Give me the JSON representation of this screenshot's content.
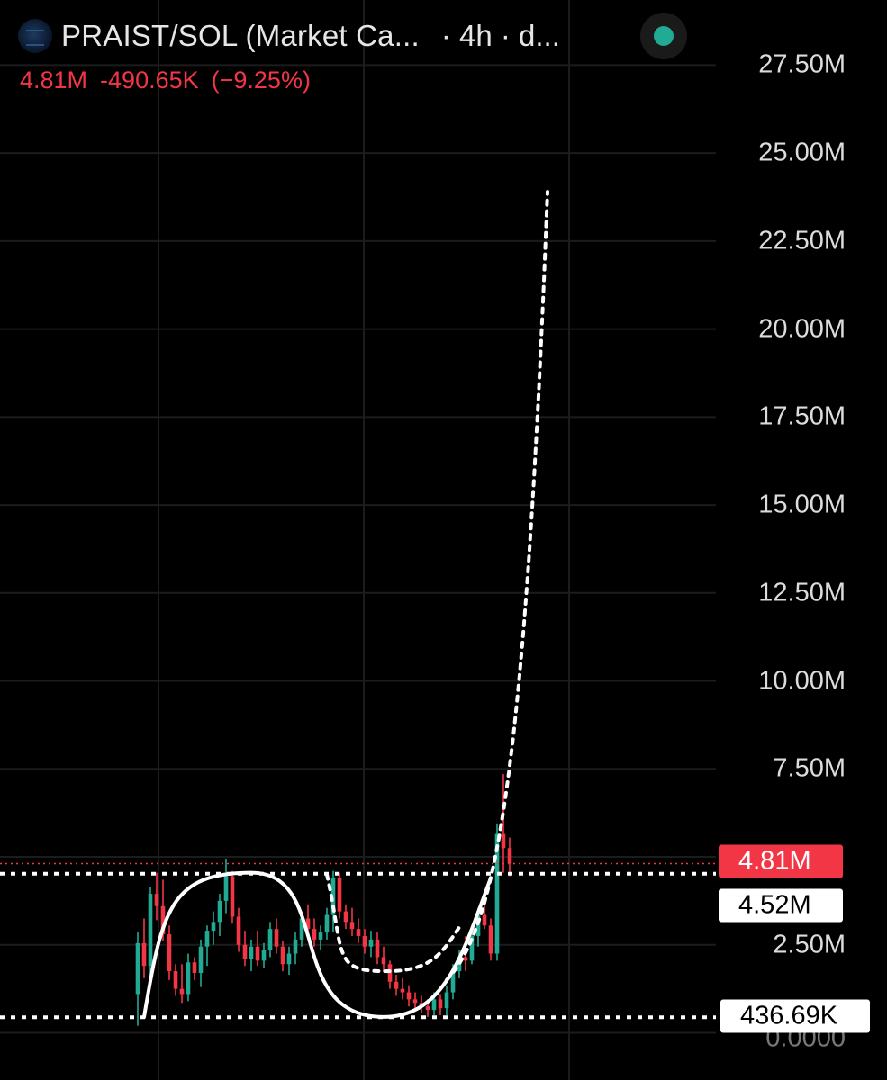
{
  "header": {
    "symbol_icon": "token-logo-icon",
    "title": "PRAIST/SOL (Market Ca...",
    "interval": "· 4h · d...",
    "status_icon": "market-status-dot-icon"
  },
  "quote": {
    "last": "4.81M",
    "change": "-490.65K",
    "change_pct": "(−9.25%)"
  },
  "colors": {
    "background": "#000000",
    "up": "#22ab94",
    "down": "#f23645",
    "grid": "#1c1c1c",
    "annotation": "#ffffff"
  },
  "price_tags": {
    "last_price": "4.81M",
    "level": "4.52M",
    "low": "436.69K"
  },
  "chart_data": {
    "type": "candlestick",
    "y_axis_ticks": [
      {
        "value": 0,
        "label": "0.0000"
      },
      {
        "value": 2.5,
        "label": "2.50M"
      },
      {
        "value": 7.5,
        "label": "7.50M"
      },
      {
        "value": 10,
        "label": "10.00M"
      },
      {
        "value": 12.5,
        "label": "12.50M"
      },
      {
        "value": 15,
        "label": "15.00M"
      },
      {
        "value": 17.5,
        "label": "17.50M"
      },
      {
        "value": 20,
        "label": "20.00M"
      },
      {
        "value": 22.5,
        "label": "22.50M"
      },
      {
        "value": 25,
        "label": "25.00M"
      },
      {
        "value": 27.5,
        "label": "27.50M"
      }
    ],
    "ylim": [
      0,
      28.2
    ],
    "y_unit": "M",
    "grid": true,
    "last_price": 4.81,
    "horizontal_levels": [
      4.52,
      0.44
    ],
    "candles_ohlc": [
      [
        1.1,
        2.85,
        0.2,
        2.55
      ],
      [
        2.55,
        3.25,
        1.55,
        1.9
      ],
      [
        1.9,
        4.15,
        1.5,
        3.95
      ],
      [
        3.95,
        4.55,
        3.2,
        3.6
      ],
      [
        3.6,
        4.35,
        2.6,
        2.8
      ],
      [
        2.8,
        3.05,
        1.5,
        1.75
      ],
      [
        1.75,
        1.95,
        1.05,
        1.25
      ],
      [
        1.25,
        1.95,
        0.85,
        1.1
      ],
      [
        1.1,
        2.25,
        0.9,
        2.0
      ],
      [
        2.0,
        2.15,
        1.5,
        1.7
      ],
      [
        1.7,
        2.65,
        1.3,
        2.45
      ],
      [
        2.45,
        3.05,
        1.9,
        2.9
      ],
      [
        2.9,
        3.45,
        2.5,
        3.15
      ],
      [
        3.15,
        3.95,
        2.75,
        3.75
      ],
      [
        3.75,
        4.95,
        3.4,
        4.45
      ],
      [
        4.45,
        4.6,
        3.1,
        3.3
      ],
      [
        3.3,
        3.55,
        2.3,
        2.5
      ],
      [
        2.5,
        2.9,
        1.9,
        2.1
      ],
      [
        2.1,
        2.65,
        1.75,
        2.45
      ],
      [
        2.45,
        2.9,
        1.9,
        2.05
      ],
      [
        2.05,
        2.55,
        1.85,
        2.35
      ],
      [
        2.35,
        3.15,
        2.15,
        2.95
      ],
      [
        2.95,
        3.25,
        2.25,
        2.45
      ],
      [
        2.45,
        2.6,
        1.75,
        1.95
      ],
      [
        1.95,
        2.45,
        1.65,
        2.25
      ],
      [
        2.25,
        2.85,
        1.95,
        2.65
      ],
      [
        2.65,
        3.45,
        2.45,
        3.25
      ],
      [
        3.25,
        3.65,
        2.75,
        2.95
      ],
      [
        2.95,
        3.25,
        2.45,
        2.65
      ],
      [
        2.65,
        3.05,
        2.35,
        2.85
      ],
      [
        2.85,
        3.55,
        2.65,
        3.35
      ],
      [
        3.35,
        4.6,
        2.85,
        4.4
      ],
      [
        4.4,
        4.55,
        3.25,
        3.45
      ],
      [
        3.45,
        3.65,
        2.95,
        3.15
      ],
      [
        3.15,
        3.55,
        2.75,
        2.95
      ],
      [
        2.95,
        3.25,
        2.55,
        2.75
      ],
      [
        2.75,
        2.95,
        2.25,
        2.45
      ],
      [
        2.45,
        2.9,
        2.15,
        2.65
      ],
      [
        2.65,
        2.85,
        1.95,
        2.15
      ],
      [
        2.15,
        2.45,
        1.75,
        1.95
      ],
      [
        1.95,
        2.05,
        1.25,
        1.45
      ],
      [
        1.45,
        1.65,
        1.05,
        1.25
      ],
      [
        1.25,
        1.55,
        0.95,
        1.15
      ],
      [
        1.15,
        1.35,
        0.75,
        0.95
      ],
      [
        0.95,
        1.15,
        0.65,
        0.85
      ],
      [
        0.85,
        1.05,
        0.55,
        0.75
      ],
      [
        0.75,
        0.95,
        0.45,
        0.65
      ],
      [
        0.65,
        1.15,
        0.5,
        0.95
      ],
      [
        0.95,
        1.1,
        0.5,
        0.7
      ],
      [
        0.7,
        1.35,
        0.5,
        1.15
      ],
      [
        1.15,
        1.95,
        0.95,
        1.75
      ],
      [
        1.75,
        2.35,
        1.55,
        2.15
      ],
      [
        2.15,
        2.75,
        1.75,
        2.05
      ],
      [
        2.05,
        2.95,
        1.95,
        2.75
      ],
      [
        2.75,
        3.55,
        2.45,
        3.35
      ],
      [
        3.35,
        3.85,
        2.95,
        3.05
      ],
      [
        3.05,
        3.25,
        2.05,
        2.25
      ],
      [
        2.25,
        5.95,
        2.05,
        5.65
      ],
      [
        5.65,
        7.35,
        4.55,
        5.25
      ],
      [
        5.25,
        5.55,
        4.45,
        4.81
      ]
    ],
    "annotations": [
      {
        "type": "projection-curve",
        "style": "dotted",
        "start": {
          "candle": 49,
          "value": 1.5
        },
        "end": {
          "candle": 65,
          "value": 23.9
        }
      },
      {
        "type": "wave-curve",
        "style": "solid",
        "start": {
          "candle": 1,
          "value": 0.45
        },
        "end": {
          "candle": 56,
          "value": 4.4
        }
      },
      {
        "type": "cup-curve",
        "style": "dotted",
        "start": {
          "candle": 30,
          "value": 4.5
        },
        "end": {
          "candle": 47,
          "value": 1.8
        }
      }
    ]
  }
}
